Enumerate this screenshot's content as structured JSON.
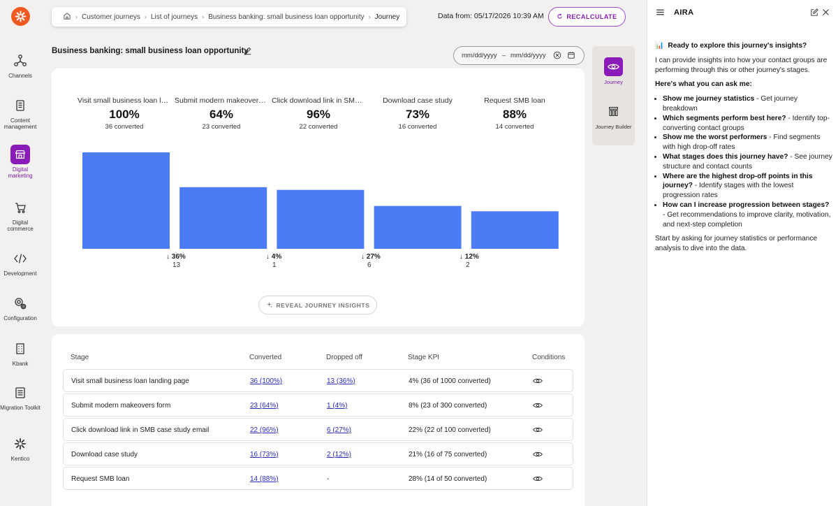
{
  "nav": {
    "items": [
      {
        "label": "Channels",
        "icon": "channels-icon"
      },
      {
        "label": "Content management",
        "icon": "content-icon"
      },
      {
        "label": "Digital marketing",
        "icon": "storefront-icon"
      },
      {
        "label": "Digital commerce",
        "icon": "cart-icon"
      },
      {
        "label": "Development",
        "icon": "code-icon"
      },
      {
        "label": "Configuration",
        "icon": "gear-icon"
      },
      {
        "label": "Kbank",
        "icon": "building-icon"
      },
      {
        "label": "Migration Toolkit",
        "icon": "list-icon"
      },
      {
        "label": "Kentico",
        "icon": "kentico-icon"
      }
    ],
    "active_index": 2
  },
  "breadcrumb": {
    "items": [
      "Customer journeys",
      "List of journeys",
      "Business banking: small business loan opportunity",
      "Journey"
    ]
  },
  "header": {
    "data_from": "Data from: 05/17/2026 10:39 AM",
    "recalculate_label": "RECALCULATE"
  },
  "page": {
    "title": "Business banking: small business loan opportunity"
  },
  "date_range": {
    "from_placeholder": "mm/dd/yyyy",
    "separator": "–",
    "to_placeholder": "mm/dd/yyyy"
  },
  "chart_data": {
    "type": "bar",
    "categories": [
      "Visit small business loan la...",
      "Submit modern makeovers ...",
      "Click download link in SMB ...",
      "Download case study",
      "Request SMB loan"
    ],
    "values": [
      36,
      23,
      22,
      16,
      14
    ],
    "percent_labels": [
      "100%",
      "64%",
      "96%",
      "73%",
      "88%"
    ],
    "converted_labels": [
      "36 converted",
      "23 converted",
      "22 converted",
      "16 converted",
      "14 converted"
    ],
    "dropoffs": [
      {
        "pct": "↓ 36%",
        "count": "13"
      },
      {
        "pct": "↓ 4%",
        "count": "1"
      },
      {
        "pct": "↓ 27%",
        "count": "6"
      },
      {
        "pct": "↓ 12%",
        "count": "2"
      }
    ],
    "bar_color": "#4b7bf5",
    "ylim": [
      0,
      36
    ],
    "grid": false
  },
  "reveal_label": "REVEAL JOURNEY INSIGHTS",
  "table": {
    "headers": [
      "Stage",
      "Converted",
      "Dropped off",
      "Stage KPI",
      "Conditions"
    ],
    "rows": [
      {
        "stage": "Visit small business loan landing page",
        "converted": "36 (100%)",
        "dropped": "13 (36%)",
        "kpi": "4% (36 of 1000 converted)"
      },
      {
        "stage": "Submit modern makeovers form",
        "converted": "23 (64%)",
        "dropped": "1 (4%)",
        "kpi": "8% (23 of 300 converted)"
      },
      {
        "stage": "Click download link in SMB case study email",
        "converted": "22 (96%)",
        "dropped": "6 (27%)",
        "kpi": "22% (22 of 100 converted)"
      },
      {
        "stage": "Download case study",
        "converted": "16 (73%)",
        "dropped": "2 (12%)",
        "kpi": "21% (16 of 75 converted)"
      },
      {
        "stage": "Request SMB loan",
        "converted": "14 (88%)",
        "dropped": "-",
        "kpi": "28% (14 of 50 converted)"
      }
    ]
  },
  "journey_tabs": [
    {
      "label": "Journey",
      "icon": "eye-icon"
    },
    {
      "label": "Journey Builder",
      "icon": "builder-icon"
    }
  ],
  "aira": {
    "title": "AIRA",
    "intro_icon": "📊",
    "intro_heading": "Ready to explore this journey's insights?",
    "intro_text": "I can provide insights into how your contact groups are performing through this or other journey's stages.",
    "ask_heading": "Here's what you can ask me:",
    "suggestions": [
      {
        "q": "Show me journey statistics",
        "a": " - Get journey breakdown"
      },
      {
        "q": "Which segments perform best here?",
        "a": " - Identify top-converting contact groups"
      },
      {
        "q": "Show me the worst performers",
        "a": " - Find segments with high drop-off rates"
      },
      {
        "q": "What stages does this journey have?",
        "a": " - See journey structure and contact counts"
      },
      {
        "q": "Where are the highest drop-off points in this journey?",
        "a": " - Identify stages with the lowest progression rates"
      },
      {
        "q": "How can I increase progression between stages?",
        "a": " - Get recommendations to improve clarity, motivation, and next-step completion"
      }
    ],
    "closing": "Start by asking for journey statistics or performance analysis to dive into the data."
  }
}
